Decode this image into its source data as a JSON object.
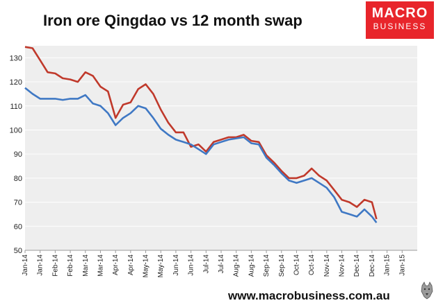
{
  "chart_data": {
    "type": "line",
    "title": "Iron ore Qingdao vs 12 month swap",
    "xlabel": "",
    "ylabel": "",
    "ylim": [
      50,
      135
    ],
    "yticks": [
      50,
      60,
      70,
      80,
      90,
      100,
      110,
      120,
      130
    ],
    "xticks": [
      "Jan-14",
      "Jan-14",
      "Feb-14",
      "Feb-14",
      "Mar-14",
      "Mar-14",
      "Apr-14",
      "Apr-14",
      "May-14",
      "May-14",
      "Jun-14",
      "Jun-14",
      "Jul-14",
      "Jul-14",
      "Aug-14",
      "Aug-14",
      "Sep-14",
      "Sep-14",
      "Oct-14",
      "Oct-14",
      "Nov-14",
      "Nov-14",
      "Dec-14",
      "Dec-14",
      "Jan-15",
      "Jan-15"
    ],
    "grid": "horizontal",
    "legend": "none",
    "series": [
      {
        "color": "#c0392b",
        "x": [
          0,
          0.5,
          1,
          1.5,
          2,
          2.5,
          3,
          3.5,
          4,
          4.5,
          5,
          5.5,
          6,
          6.5,
          7,
          7.5,
          8,
          8.5,
          9,
          9.5,
          10,
          10.5,
          11,
          11.5,
          12,
          12.5,
          13,
          13.5,
          14,
          14.5,
          15,
          15.5,
          16,
          16.5,
          17,
          17.5,
          18,
          18.5,
          19,
          19.5,
          20,
          20.5,
          21,
          21.5,
          22,
          22.5,
          23,
          23.3
        ],
        "values": [
          134.5,
          134,
          129,
          124,
          123.5,
          121.5,
          121,
          120,
          124,
          122.5,
          118,
          116,
          105,
          110.5,
          111.5,
          117,
          119,
          115,
          108.5,
          103,
          99,
          99,
          93,
          94,
          91,
          95,
          96,
          97,
          97,
          98,
          95.5,
          95,
          89.5,
          86.5,
          83,
          80,
          80,
          81,
          84,
          81,
          79,
          75,
          71,
          70,
          68,
          71,
          70,
          63
        ]
      },
      {
        "color": "#3f78c4",
        "x": [
          0,
          0.5,
          1,
          1.5,
          2,
          2.5,
          3,
          3.5,
          4,
          4.5,
          5,
          5.5,
          6,
          6.5,
          7,
          7.5,
          8,
          8.5,
          9,
          9.5,
          10,
          10.5,
          11,
          11.5,
          12,
          12.5,
          13,
          13.5,
          14,
          14.5,
          15,
          15.5,
          16,
          16.5,
          17,
          17.5,
          18,
          18.5,
          19,
          19.5,
          20,
          20.5,
          21,
          21.5,
          22,
          22.5,
          23,
          23.3
        ],
        "values": [
          117.5,
          115,
          113,
          113,
          113,
          112.5,
          113,
          113,
          114.5,
          111,
          110,
          107,
          102,
          105,
          107,
          110,
          109,
          105,
          100.5,
          98,
          96,
          95,
          94,
          92,
          90,
          94,
          95,
          96,
          96.5,
          97,
          94.5,
          94,
          88.5,
          85.5,
          82,
          79,
          78,
          79,
          80,
          78,
          76,
          72,
          66,
          65,
          64,
          67,
          64,
          61.5
        ]
      }
    ]
  },
  "footer": {
    "url": "www.macrobusiness.com.au"
  },
  "logo": {
    "line1": "MACRO",
    "line2": "BUSINESS"
  },
  "colors": {
    "plot_bg": "#eeeeee",
    "grid": "#ffffff",
    "logo_bg": "#e8252b"
  }
}
